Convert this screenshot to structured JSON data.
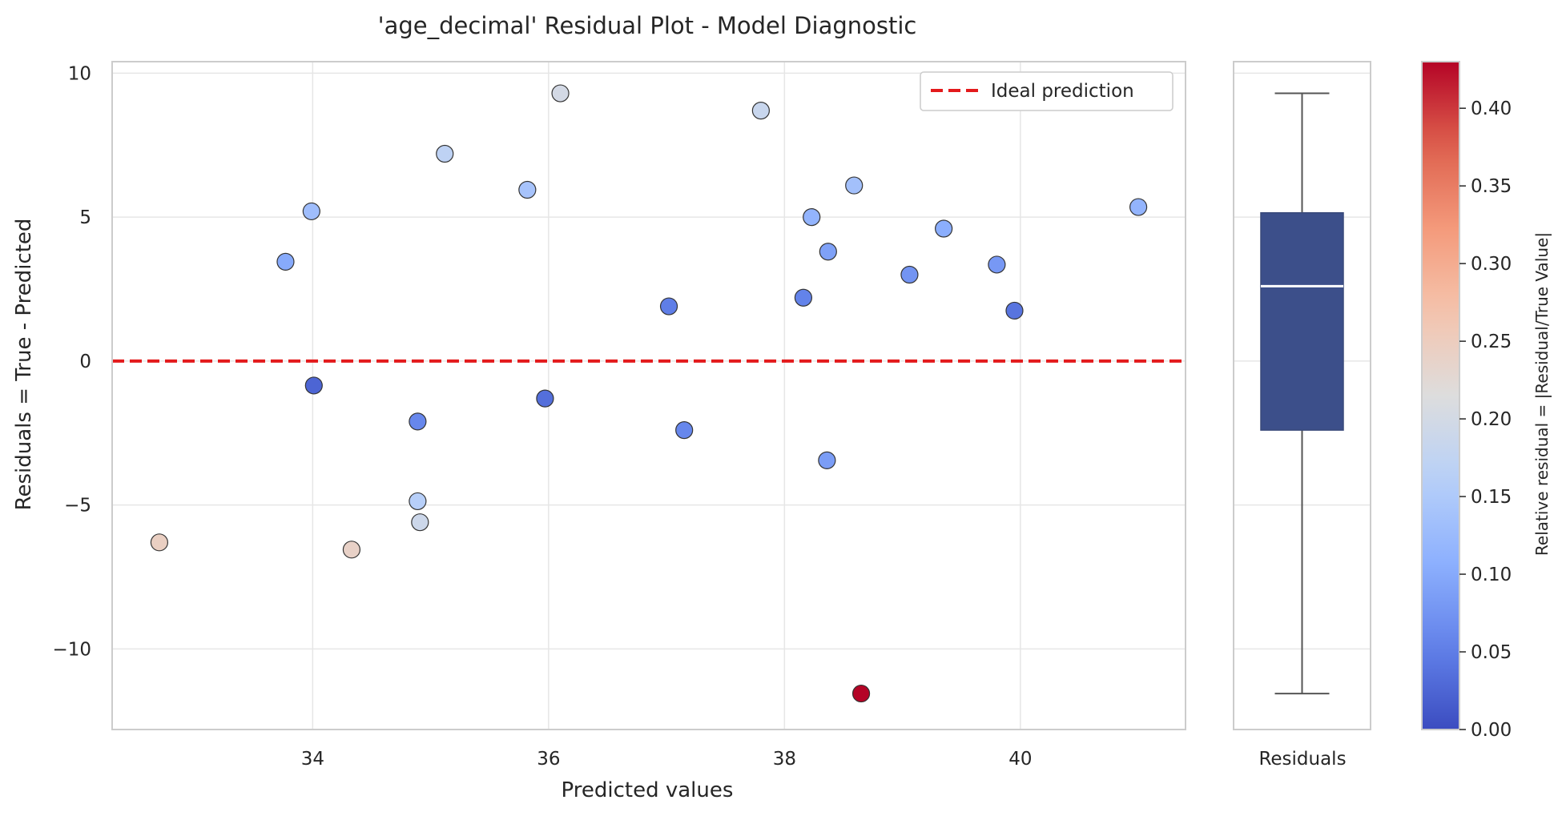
{
  "chart_data": [
    {
      "type": "scatter",
      "title": "'age_decimal' Residual Plot - Model Diagnostic",
      "xlabel": "Predicted values",
      "ylabel": "Residuals = True - Predicted",
      "xlim": [
        32.3,
        41.4
      ],
      "ylim": [
        -12.8,
        10.4
      ],
      "xticks": [
        34,
        36,
        38,
        40
      ],
      "yticks": [
        10,
        5,
        0,
        -5,
        -10
      ],
      "xtick_labels": [
        "34",
        "36",
        "38",
        "40"
      ],
      "ytick_labels": [
        "10",
        "5",
        "0",
        "−5",
        "−10"
      ],
      "grid": true,
      "legend": {
        "position": "top-right",
        "entries": [
          "Ideal prediction"
        ]
      },
      "reference_line": {
        "y": 0,
        "color": "#e31a1c",
        "style": "dashed",
        "label": "Ideal prediction"
      },
      "points": [
        {
          "x": 32.7,
          "y": -6.3,
          "rel": 0.245
        },
        {
          "x": 33.77,
          "y": 3.45,
          "rel": 0.1
        },
        {
          "x": 33.99,
          "y": 5.2,
          "rel": 0.13
        },
        {
          "x": 34.01,
          "y": -0.85,
          "rel": 0.025
        },
        {
          "x": 34.33,
          "y": -6.55,
          "rel": 0.24
        },
        {
          "x": 34.89,
          "y": -2.1,
          "rel": 0.06
        },
        {
          "x": 34.89,
          "y": -4.87,
          "rel": 0.16
        },
        {
          "x": 34.91,
          "y": -5.6,
          "rel": 0.19
        },
        {
          "x": 35.12,
          "y": 7.2,
          "rel": 0.17
        },
        {
          "x": 35.82,
          "y": 5.95,
          "rel": 0.14
        },
        {
          "x": 35.97,
          "y": -1.3,
          "rel": 0.035
        },
        {
          "x": 36.1,
          "y": 9.3,
          "rel": 0.2
        },
        {
          "x": 37.02,
          "y": 1.9,
          "rel": 0.05
        },
        {
          "x": 37.15,
          "y": -2.4,
          "rel": 0.06
        },
        {
          "x": 37.8,
          "y": 8.7,
          "rel": 0.185
        },
        {
          "x": 38.16,
          "y": 2.2,
          "rel": 0.055
        },
        {
          "x": 38.23,
          "y": 5.0,
          "rel": 0.115
        },
        {
          "x": 38.36,
          "y": -3.45,
          "rel": 0.085
        },
        {
          "x": 38.37,
          "y": 3.8,
          "rel": 0.09
        },
        {
          "x": 38.59,
          "y": 6.1,
          "rel": 0.135
        },
        {
          "x": 38.65,
          "y": -11.55,
          "rel": 0.43
        },
        {
          "x": 39.06,
          "y": 3.0,
          "rel": 0.075
        },
        {
          "x": 39.35,
          "y": 4.6,
          "rel": 0.105
        },
        {
          "x": 39.8,
          "y": 3.35,
          "rel": 0.08
        },
        {
          "x": 39.95,
          "y": 1.75,
          "rel": 0.04
        },
        {
          "x": 41.0,
          "y": 5.35,
          "rel": 0.115
        }
      ]
    },
    {
      "type": "box",
      "xlabel": "Residuals",
      "ylim": [
        -12.8,
        10.4
      ],
      "whisker_low": -11.55,
      "q1": -2.4,
      "median": 2.6,
      "q3": 5.15,
      "whisker_high": 9.3,
      "color": "#3c4f8a"
    },
    {
      "type": "colorbar",
      "label": "Relative residual = |Residual/True Value|",
      "range": [
        0,
        0.43
      ],
      "colormap": "coolwarm",
      "ticks": [
        0.0,
        0.05,
        0.1,
        0.15,
        0.2,
        0.25,
        0.3,
        0.35,
        0.4
      ],
      "tick_labels": [
        "0.00",
        "0.05",
        "0.10",
        "0.15",
        "0.20",
        "0.25",
        "0.30",
        "0.35",
        "0.40"
      ]
    }
  ]
}
